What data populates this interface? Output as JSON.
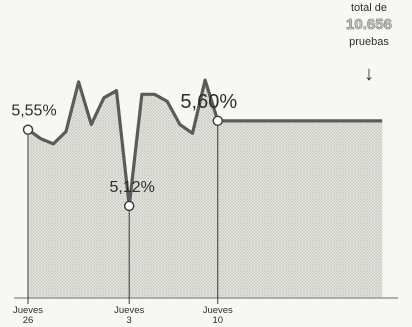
{
  "chart_data": {
    "type": "area",
    "title": "",
    "xlabel": "",
    "ylabel": "",
    "ylim": [
      4.6,
      6.0
    ],
    "grid": false,
    "legend": "none",
    "x": [
      0,
      1,
      2,
      3,
      4,
      5,
      6,
      7,
      8,
      9,
      10,
      11,
      12,
      13,
      14,
      15,
      16,
      17,
      18,
      19,
      20,
      21,
      22,
      23,
      24,
      25,
      26,
      27,
      28
    ],
    "series": [
      {
        "values": [
          5.55,
          5.5,
          5.47,
          5.54,
          5.82,
          5.58,
          5.73,
          5.77,
          5.12,
          5.75,
          5.75,
          5.71,
          5.58,
          5.53,
          5.83,
          5.6,
          5.6,
          5.6,
          5.6,
          5.6,
          5.6,
          5.6,
          5.6,
          5.6,
          5.6,
          5.6,
          5.6,
          5.6,
          5.6
        ]
      }
    ],
    "point_labels": [
      {
        "index": 0,
        "text": "5,55%"
      },
      {
        "index": 8,
        "text": "5,12%"
      },
      {
        "index": 15,
        "text": "5,60%"
      }
    ],
    "x_ticks": [
      {
        "index": 0,
        "line1": "Jueves",
        "line2": "26"
      },
      {
        "index": 8,
        "line1": "Jueves",
        "line2": "3"
      },
      {
        "index": 15,
        "line1": "Jueves",
        "line2": "10"
      }
    ],
    "annotation": {
      "line1": "total de",
      "line2": "10.656",
      "line3": "pruebas",
      "arrow": "↓"
    },
    "colors": {
      "line": "#5b5b5b",
      "fill": "#cfcfc8",
      "marker_fill": "#ffffff"
    }
  }
}
